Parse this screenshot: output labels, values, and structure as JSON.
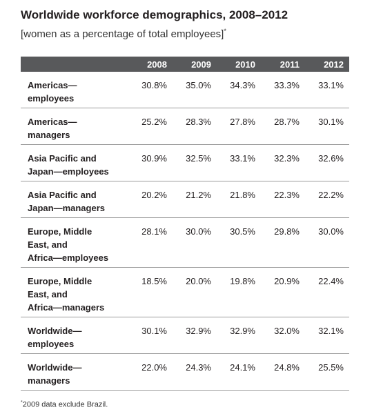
{
  "header": {
    "title": "Worldwide workforce demographics, 2008–2012",
    "subtitle": "[women as a percentage of total employees]",
    "subtitle_mark": "*"
  },
  "table": {
    "columns": [
      "2008",
      "2009",
      "2010",
      "2011",
      "2012"
    ],
    "rows": [
      {
        "label": [
          "Americas—",
          "employees"
        ],
        "values": [
          "30.8%",
          "35.0%",
          "34.3%",
          "33.3%",
          "33.1%"
        ]
      },
      {
        "label": [
          "Americas—",
          "managers"
        ],
        "values": [
          "25.2%",
          "28.3%",
          "27.8%",
          "28.7%",
          "30.1%"
        ]
      },
      {
        "label": [
          "Asia Pacific and",
          "Japan—employees"
        ],
        "values": [
          "30.9%",
          "32.5%",
          "33.1%",
          "32.3%",
          "32.6%"
        ]
      },
      {
        "label": [
          "Asia Pacific and",
          "Japan—managers"
        ],
        "values": [
          "20.2%",
          "21.2%",
          "21.8%",
          "22.3%",
          "22.2%"
        ]
      },
      {
        "label": [
          "Europe, Middle",
          "East, and",
          "Africa—employees"
        ],
        "values": [
          "28.1%",
          "30.0%",
          "30.5%",
          "29.8%",
          "30.0%"
        ]
      },
      {
        "label": [
          "Europe, Middle",
          "East, and",
          "Africa—managers"
        ],
        "values": [
          "18.5%",
          "20.0%",
          "19.8%",
          "20.9%",
          "22.4%"
        ]
      },
      {
        "label": [
          "Worldwide—",
          "employees"
        ],
        "values": [
          "30.1%",
          "32.9%",
          "32.9%",
          "32.0%",
          "32.1%"
        ]
      },
      {
        "label": [
          "Worldwide—",
          "managers"
        ],
        "values": [
          "22.0%",
          "24.3%",
          "24.1%",
          "24.8%",
          "25.5%"
        ]
      }
    ]
  },
  "footnote": {
    "mark": "*",
    "text": "2009 data exclude Brazil."
  }
}
